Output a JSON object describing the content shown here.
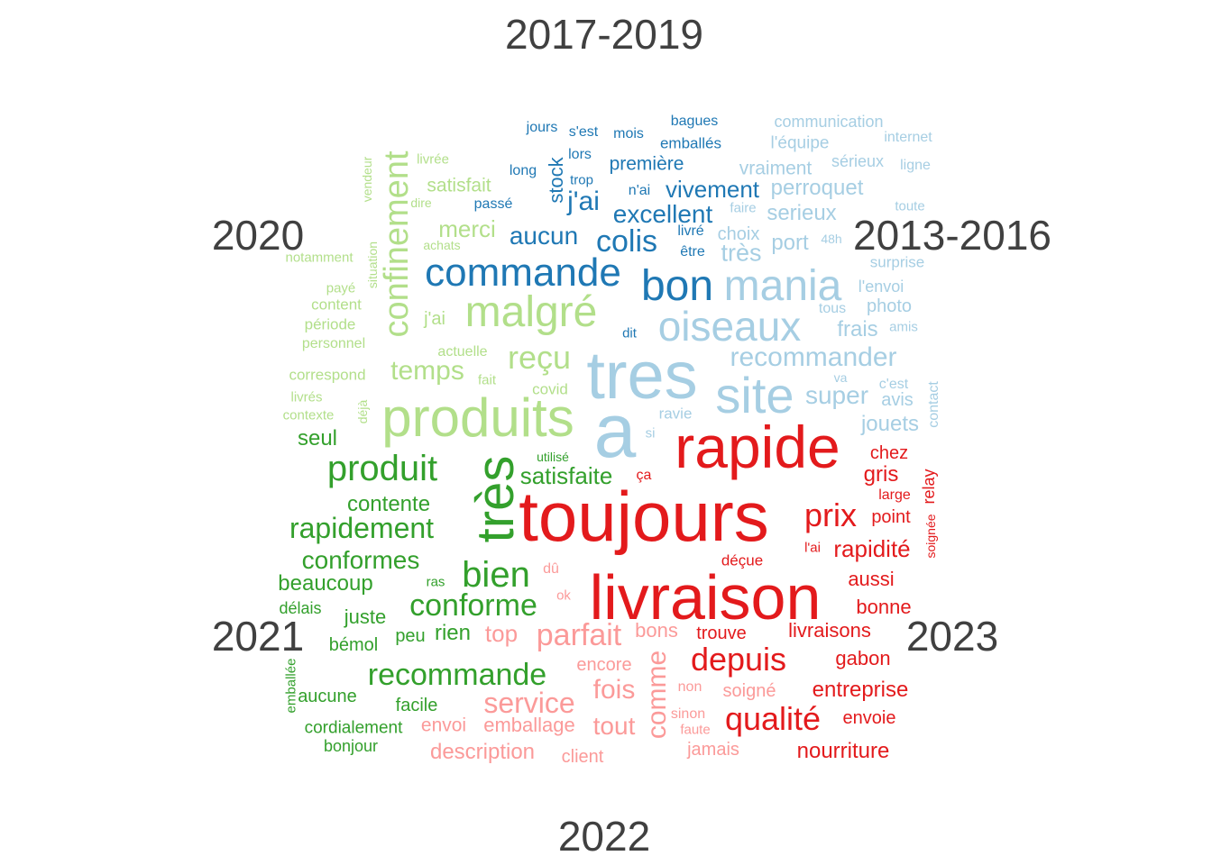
{
  "chart_data": {
    "type": "comparison_wordcloud",
    "groups": [
      {
        "name": "2017-2019",
        "color": "#1F78B4"
      },
      {
        "name": "2013-2016",
        "color": "#A6CEE3"
      },
      {
        "name": "2020",
        "color": "#B2DF8A"
      },
      {
        "name": "2021",
        "color": "#33A02C"
      },
      {
        "name": "2022",
        "color": "#FB9A99"
      },
      {
        "name": "2023",
        "color": "#E31A1C"
      }
    ],
    "words": [
      {
        "text": "commande",
        "group": "2017-2019",
        "weight": 0.55
      },
      {
        "text": "bon",
        "group": "2017-2019",
        "weight": 0.6
      },
      {
        "text": "colis",
        "group": "2017-2019",
        "weight": 0.38
      },
      {
        "text": "excellent",
        "group": "2017-2019",
        "weight": 0.3
      },
      {
        "text": "aucun",
        "group": "2017-2019",
        "weight": 0.3
      },
      {
        "text": "j'ai",
        "group": "2017-2019",
        "weight": 0.33
      },
      {
        "text": "vivement",
        "group": "2017-2019",
        "weight": 0.27
      },
      {
        "text": "stock",
        "group": "2017-2019",
        "weight": 0.25
      },
      {
        "text": "première",
        "group": "2017-2019",
        "weight": 0.22
      },
      {
        "text": "jours",
        "group": "2017-2019",
        "weight": 0.17
      },
      {
        "text": "s'est",
        "group": "2017-2019",
        "weight": 0.17
      },
      {
        "text": "mois",
        "group": "2017-2019",
        "weight": 0.17
      },
      {
        "text": "bagues",
        "group": "2017-2019",
        "weight": 0.17
      },
      {
        "text": "emballés",
        "group": "2017-2019",
        "weight": 0.18
      },
      {
        "text": "lors",
        "group": "2017-2019",
        "weight": 0.17
      },
      {
        "text": "long",
        "group": "2017-2019",
        "weight": 0.17
      },
      {
        "text": "trop",
        "group": "2017-2019",
        "weight": 0.17
      },
      {
        "text": "passé",
        "group": "2017-2019",
        "weight": 0.17
      },
      {
        "text": "n'ai",
        "group": "2017-2019",
        "weight": 0.17
      },
      {
        "text": "livré",
        "group": "2017-2019",
        "weight": 0.17
      },
      {
        "text": "être",
        "group": "2017-2019",
        "weight": 0.17
      },
      {
        "text": "dit",
        "group": "2017-2019",
        "weight": 0.15
      },
      {
        "text": "tres",
        "group": "2013-2016",
        "weight": 0.9
      },
      {
        "text": "a",
        "group": "2013-2016",
        "weight": 1.0
      },
      {
        "text": "site",
        "group": "2013-2016",
        "weight": 0.65
      },
      {
        "text": "mania",
        "group": "2013-2016",
        "weight": 0.6
      },
      {
        "text": "oiseaux",
        "group": "2013-2016",
        "weight": 0.55
      },
      {
        "text": "recommander",
        "group": "2013-2016",
        "weight": 0.3
      },
      {
        "text": "super",
        "group": "2013-2016",
        "weight": 0.28
      },
      {
        "text": "très",
        "group": "2013-2016",
        "weight": 0.28
      },
      {
        "text": "port",
        "group": "2013-2016",
        "weight": 0.25
      },
      {
        "text": "serieux",
        "group": "2013-2016",
        "weight": 0.25
      },
      {
        "text": "perroquet",
        "group": "2013-2016",
        "weight": 0.25
      },
      {
        "text": "vraiment",
        "group": "2013-2016",
        "weight": 0.2
      },
      {
        "text": "communication",
        "group": "2013-2016",
        "weight": 0.18
      },
      {
        "text": "l'équipe",
        "group": "2013-2016",
        "weight": 0.17
      },
      {
        "text": "internet",
        "group": "2013-2016",
        "weight": 0.16
      },
      {
        "text": "sérieux",
        "group": "2013-2016",
        "weight": 0.17
      },
      {
        "text": "ligne",
        "group": "2013-2016",
        "weight": 0.16
      },
      {
        "text": "toute",
        "group": "2013-2016",
        "weight": 0.16
      },
      {
        "text": "faire",
        "group": "2013-2016",
        "weight": 0.15
      },
      {
        "text": "choix",
        "group": "2013-2016",
        "weight": 0.2
      },
      {
        "text": "48h",
        "group": "2013-2016",
        "weight": 0.15
      },
      {
        "text": "surprise",
        "group": "2013-2016",
        "weight": 0.17
      },
      {
        "text": "l'envoi",
        "group": "2013-2016",
        "weight": 0.18
      },
      {
        "text": "photo",
        "group": "2013-2016",
        "weight": 0.2
      },
      {
        "text": "tous",
        "group": "2013-2016",
        "weight": 0.16
      },
      {
        "text": "frais",
        "group": "2013-2016",
        "weight": 0.25
      },
      {
        "text": "amis",
        "group": "2013-2016",
        "weight": 0.15
      },
      {
        "text": "va",
        "group": "2013-2016",
        "weight": 0.15
      },
      {
        "text": "c'est",
        "group": "2013-2016",
        "weight": 0.17
      },
      {
        "text": "avis",
        "group": "2013-2016",
        "weight": 0.2
      },
      {
        "text": "contact",
        "group": "2013-2016",
        "weight": 0.16
      },
      {
        "text": "jouets",
        "group": "2013-2016",
        "weight": 0.25
      },
      {
        "text": "ravie",
        "group": "2013-2016",
        "weight": 0.17
      },
      {
        "text": "si",
        "group": "2013-2016",
        "weight": 0.15
      },
      {
        "text": "produits",
        "group": "2020",
        "weight": 0.75
      },
      {
        "text": "malgré",
        "group": "2020",
        "weight": 0.6
      },
      {
        "text": "confinement",
        "group": "2020",
        "weight": 0.5
      },
      {
        "text": "reçu",
        "group": "2020",
        "weight": 0.4
      },
      {
        "text": "temps",
        "group": "2020",
        "weight": 0.33
      },
      {
        "text": "merci",
        "group": "2020",
        "weight": 0.28
      },
      {
        "text": "satisfait",
        "group": "2020",
        "weight": 0.22
      },
      {
        "text": "j'ai",
        "group": "2020",
        "weight": 0.2
      },
      {
        "text": "livrée",
        "group": "2020",
        "weight": 0.17
      },
      {
        "text": "vendeur",
        "group": "2020",
        "weight": 0.16
      },
      {
        "text": "dire",
        "group": "2020",
        "weight": 0.16
      },
      {
        "text": "achats",
        "group": "2020",
        "weight": 0.16
      },
      {
        "text": "situation",
        "group": "2020",
        "weight": 0.16
      },
      {
        "text": "notamment",
        "group": "2020",
        "weight": 0.16
      },
      {
        "text": "payé",
        "group": "2020",
        "weight": 0.16
      },
      {
        "text": "content",
        "group": "2020",
        "weight": 0.17
      },
      {
        "text": "période",
        "group": "2020",
        "weight": 0.18
      },
      {
        "text": "personnel",
        "group": "2020",
        "weight": 0.17
      },
      {
        "text": "actuelle",
        "group": "2020",
        "weight": 0.17
      },
      {
        "text": "correspond",
        "group": "2020",
        "weight": 0.18
      },
      {
        "text": "fait",
        "group": "2020",
        "weight": 0.16
      },
      {
        "text": "covid",
        "group": "2020",
        "weight": 0.18
      },
      {
        "text": "livrés",
        "group": "2020",
        "weight": 0.16
      },
      {
        "text": "déjà",
        "group": "2020",
        "weight": 0.15
      },
      {
        "text": "contexte",
        "group": "2020",
        "weight": 0.16
      },
      {
        "text": "très",
        "group": "2021",
        "weight": 0.7
      },
      {
        "text": "produit",
        "group": "2021",
        "weight": 0.5
      },
      {
        "text": "bien",
        "group": "2021",
        "weight": 0.5
      },
      {
        "text": "rapidement",
        "group": "2021",
        "weight": 0.4
      },
      {
        "text": "conforme",
        "group": "2021",
        "weight": 0.42
      },
      {
        "text": "recommande",
        "group": "2021",
        "weight": 0.42
      },
      {
        "text": "conformes",
        "group": "2021",
        "weight": 0.33
      },
      {
        "text": "satisfaite",
        "group": "2021",
        "weight": 0.28
      },
      {
        "text": "contente",
        "group": "2021",
        "weight": 0.27
      },
      {
        "text": "beaucoup",
        "group": "2021",
        "weight": 0.27
      },
      {
        "text": "seul",
        "group": "2021",
        "weight": 0.25
      },
      {
        "text": "juste",
        "group": "2021",
        "weight": 0.22
      },
      {
        "text": "bémol",
        "group": "2021",
        "weight": 0.2
      },
      {
        "text": "peu",
        "group": "2021",
        "weight": 0.22
      },
      {
        "text": "rien",
        "group": "2021",
        "weight": 0.25
      },
      {
        "text": "délais",
        "group": "2021",
        "weight": 0.18
      },
      {
        "text": "ras",
        "group": "2021",
        "weight": 0.16
      },
      {
        "text": "utilisé",
        "group": "2021",
        "weight": 0.16
      },
      {
        "text": "emballée",
        "group": "2021",
        "weight": 0.16
      },
      {
        "text": "aucune",
        "group": "2021",
        "weight": 0.2
      },
      {
        "text": "facile",
        "group": "2021",
        "weight": 0.2
      },
      {
        "text": "cordialement",
        "group": "2021",
        "weight": 0.19
      },
      {
        "text": "bonjour",
        "group": "2021",
        "weight": 0.18
      },
      {
        "text": "parfait",
        "group": "2022",
        "weight": 0.4
      },
      {
        "text": "service",
        "group": "2022",
        "weight": 0.37
      },
      {
        "text": "top",
        "group": "2022",
        "weight": 0.3
      },
      {
        "text": "fois",
        "group": "2022",
        "weight": 0.33
      },
      {
        "text": "tout",
        "group": "2022",
        "weight": 0.32
      },
      {
        "text": "comme",
        "group": "2022",
        "weight": 0.3
      },
      {
        "text": "bons",
        "group": "2022",
        "weight": 0.23
      },
      {
        "text": "encore",
        "group": "2022",
        "weight": 0.2
      },
      {
        "text": "envoi",
        "group": "2022",
        "weight": 0.23
      },
      {
        "text": "emballage",
        "group": "2022",
        "weight": 0.25
      },
      {
        "text": "description",
        "group": "2022",
        "weight": 0.25
      },
      {
        "text": "client",
        "group": "2022",
        "weight": 0.2
      },
      {
        "text": "soigné",
        "group": "2022",
        "weight": 0.2
      },
      {
        "text": "jamais",
        "group": "2022",
        "weight": 0.2
      },
      {
        "text": "non",
        "group": "2022",
        "weight": 0.16
      },
      {
        "text": "sinon",
        "group": "2022",
        "weight": 0.16
      },
      {
        "text": "faute",
        "group": "2022",
        "weight": 0.16
      },
      {
        "text": "dû",
        "group": "2022",
        "weight": 0.16
      },
      {
        "text": "ok",
        "group": "2022",
        "weight": 0.15
      },
      {
        "text": "toujours",
        "group": "2023",
        "weight": 0.95
      },
      {
        "text": "livraison",
        "group": "2023",
        "weight": 0.9
      },
      {
        "text": "rapide",
        "group": "2023",
        "weight": 0.85
      },
      {
        "text": "depuis",
        "group": "2023",
        "weight": 0.45
      },
      {
        "text": "qualité",
        "group": "2023",
        "weight": 0.45
      },
      {
        "text": "prix",
        "group": "2023",
        "weight": 0.45
      },
      {
        "text": "rapidité",
        "group": "2023",
        "weight": 0.3
      },
      {
        "text": "entreprise",
        "group": "2023",
        "weight": 0.28
      },
      {
        "text": "nourriture",
        "group": "2023",
        "weight": 0.27
      },
      {
        "text": "livraisons",
        "group": "2023",
        "weight": 0.27
      },
      {
        "text": "gris",
        "group": "2023",
        "weight": 0.27
      },
      {
        "text": "point",
        "group": "2023",
        "weight": 0.23
      },
      {
        "text": "aussi",
        "group": "2023",
        "weight": 0.25
      },
      {
        "text": "bonne",
        "group": "2023",
        "weight": 0.25
      },
      {
        "text": "gabon",
        "group": "2023",
        "weight": 0.25
      },
      {
        "text": "envoie",
        "group": "2023",
        "weight": 0.22
      },
      {
        "text": "trouve",
        "group": "2023",
        "weight": 0.22
      },
      {
        "text": "chez",
        "group": "2023",
        "weight": 0.22
      },
      {
        "text": "relay",
        "group": "2023",
        "weight": 0.2
      },
      {
        "text": "large",
        "group": "2023",
        "weight": 0.17
      },
      {
        "text": "soignée",
        "group": "2023",
        "weight": 0.15
      },
      {
        "text": "l'ai",
        "group": "2023",
        "weight": 0.16
      },
      {
        "text": "déçue",
        "group": "2023",
        "weight": 0.17
      },
      {
        "text": "ça",
        "group": "2023",
        "weight": 0.16
      }
    ]
  }
}
